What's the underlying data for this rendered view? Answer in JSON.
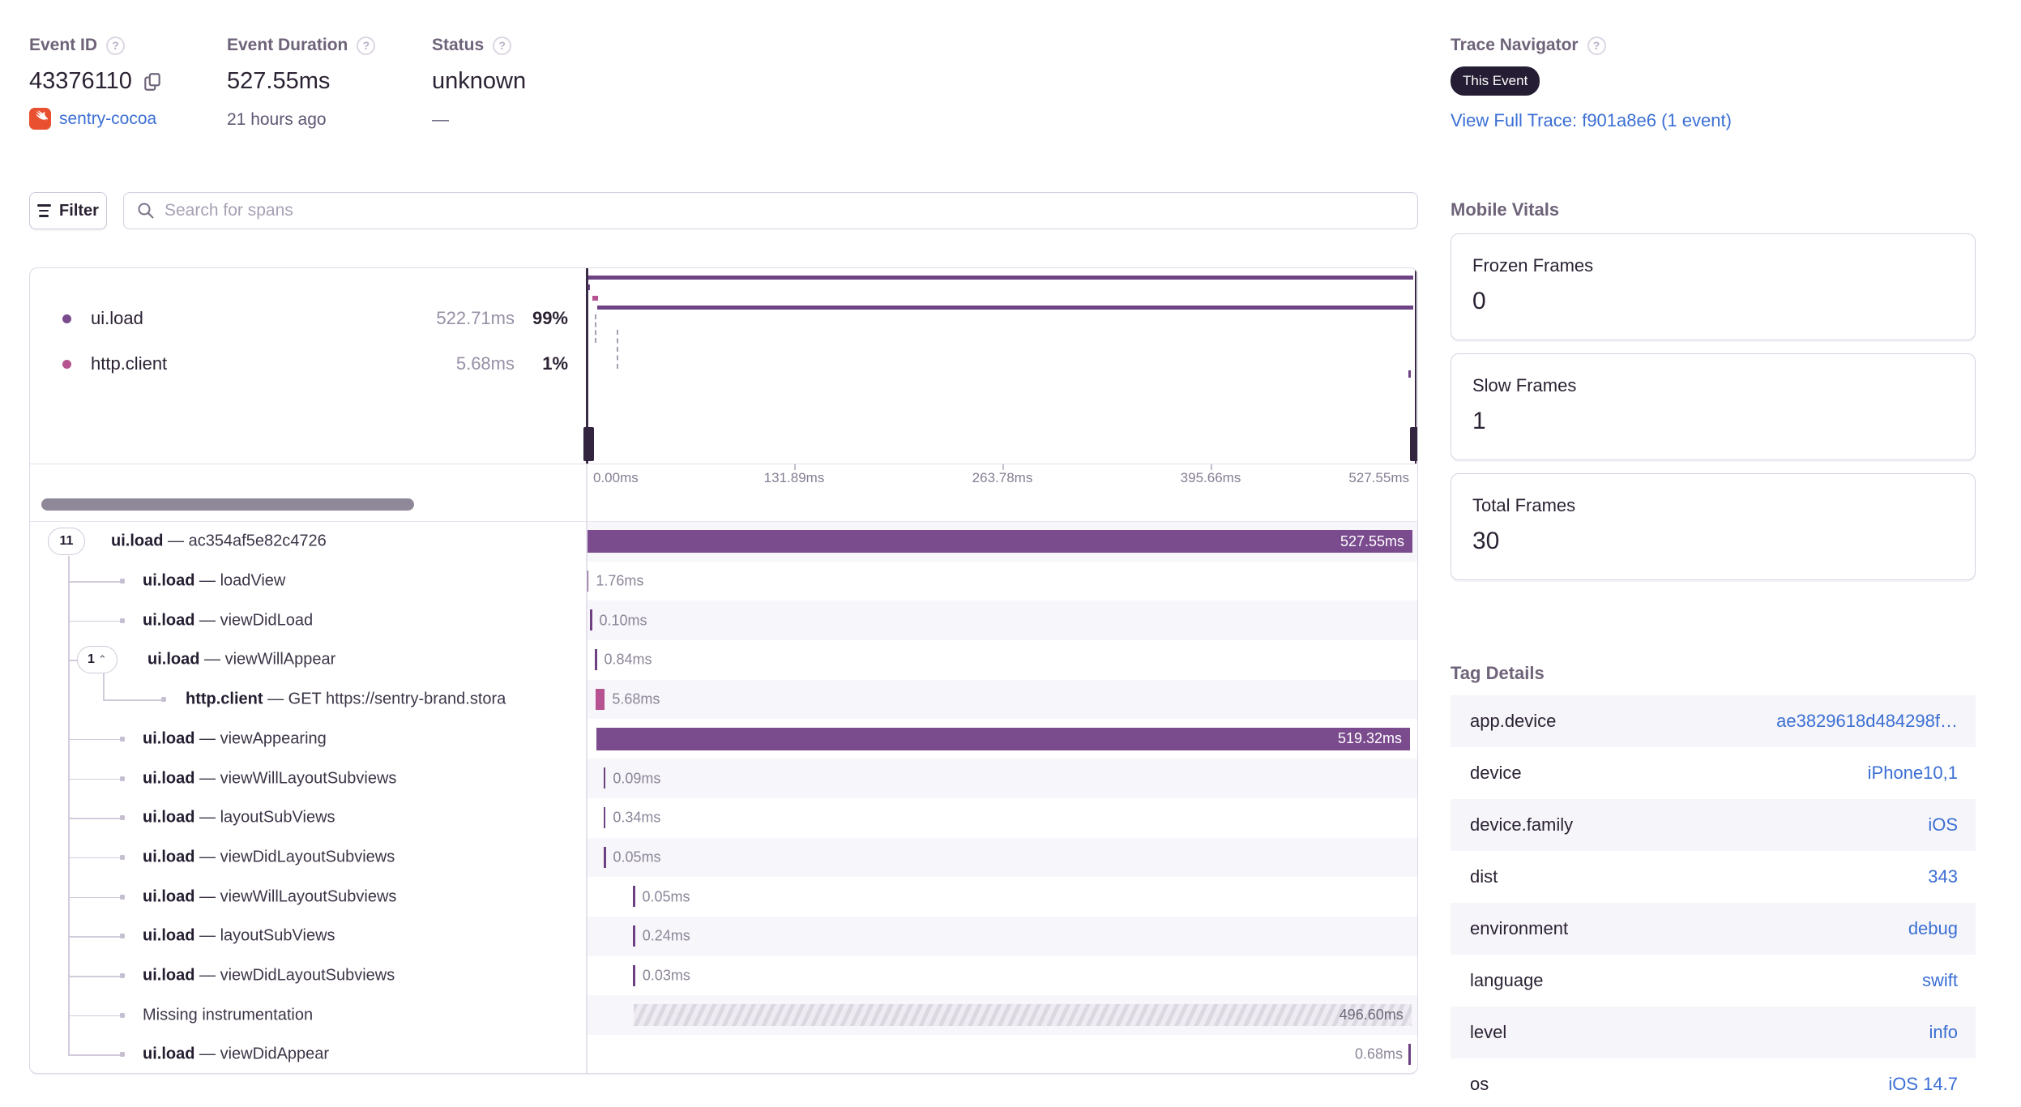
{
  "header": {
    "event_id": {
      "label": "Event ID",
      "value": "43376110",
      "project": "sentry-cocoa"
    },
    "event_duration": {
      "label": "Event Duration",
      "value": "527.55ms",
      "ago": "21 hours ago"
    },
    "status": {
      "label": "Status",
      "value": "unknown",
      "sub": "—"
    },
    "trace_navigator": {
      "label": "Trace Navigator",
      "badge": "This Event",
      "link": "View Full Trace: f901a8e6 (1 event)"
    }
  },
  "toolbar": {
    "filter_label": "Filter",
    "search_placeholder": "Search for spans"
  },
  "trace": {
    "timeline_total_ms": 527.55,
    "legend": [
      {
        "op": "ui.load",
        "duration": "522.71ms",
        "pct": "99%",
        "color": "#7a4b8d"
      },
      {
        "op": "http.client",
        "duration": "5.68ms",
        "pct": "1%",
        "color": "#b65390"
      }
    ],
    "axis_ticks": [
      "0.00ms",
      "131.89ms",
      "263.78ms",
      "395.66ms",
      "527.55ms"
    ],
    "spans": [
      {
        "badge": "11",
        "op": "ui.load",
        "desc": "ac354af5e82c4726",
        "depth": 0,
        "kind": "bar",
        "start_ms": 0,
        "dur_ms": 527.55,
        "dur_label": "527.55ms",
        "color": "#7a4b8d"
      },
      {
        "op": "ui.load",
        "desc": "loadView",
        "depth": 1,
        "kind": "tick",
        "start_ms": 0,
        "dur_ms": 1.76,
        "dur_label": "1.76ms"
      },
      {
        "op": "ui.load",
        "desc": "viewDidLoad",
        "depth": 1,
        "kind": "tick",
        "start_ms": 2.6,
        "dur_ms": 0.1,
        "dur_label": "0.10ms"
      },
      {
        "badge": "1",
        "badge_chevron": "up",
        "op": "ui.load",
        "desc": "viewWillAppear",
        "depth": 1,
        "kind": "tick",
        "start_ms": 5.7,
        "dur_ms": 0.84,
        "dur_label": "0.84ms"
      },
      {
        "op": "http.client",
        "desc": "GET https://sentry-brand.stora",
        "depth": 2,
        "kind": "tick",
        "start_ms": 6.4,
        "dur_ms": 5.68,
        "dur_label": "5.68ms",
        "color": "#b65390"
      },
      {
        "op": "ui.load",
        "desc": "viewAppearing",
        "depth": 1,
        "kind": "bar",
        "start_ms": 6.7,
        "dur_ms": 519.32,
        "dur_label": "519.32ms",
        "color": "#7a4b8d"
      },
      {
        "op": "ui.load",
        "desc": "viewWillLayoutSubviews",
        "depth": 1,
        "kind": "tick",
        "start_ms": 11.3,
        "dur_ms": 0.09,
        "dur_label": "0.09ms"
      },
      {
        "op": "ui.load",
        "desc": "layoutSubViews",
        "depth": 1,
        "kind": "tick",
        "start_ms": 11.3,
        "dur_ms": 0.34,
        "dur_label": "0.34ms"
      },
      {
        "op": "ui.load",
        "desc": "viewDidLayoutSubviews",
        "depth": 1,
        "kind": "tick",
        "start_ms": 11.4,
        "dur_ms": 0.05,
        "dur_label": "0.05ms"
      },
      {
        "op": "ui.load",
        "desc": "viewWillLayoutSubviews",
        "depth": 1,
        "kind": "tick",
        "start_ms": 30.0,
        "dur_ms": 0.05,
        "dur_label": "0.05ms"
      },
      {
        "op": "ui.load",
        "desc": "layoutSubViews",
        "depth": 1,
        "kind": "tick",
        "start_ms": 30.1,
        "dur_ms": 0.24,
        "dur_label": "0.24ms"
      },
      {
        "op": "ui.load",
        "desc": "viewDidLayoutSubviews",
        "depth": 1,
        "kind": "tick",
        "start_ms": 30.2,
        "dur_ms": 0.03,
        "dur_label": "0.03ms"
      },
      {
        "op": null,
        "desc": "Missing instrumentation",
        "depth": 1,
        "kind": "hatched",
        "start_ms": 30.3,
        "dur_ms": 496.6,
        "dur_label": "496.60ms"
      },
      {
        "op": "ui.load",
        "desc": "viewDidAppear",
        "depth": 1,
        "kind": "tick-end",
        "start_ms": 526.8,
        "dur_ms": 0.68,
        "dur_label": "0.68ms"
      }
    ]
  },
  "vitals": {
    "title": "Mobile Vitals",
    "cards": [
      {
        "label": "Frozen Frames",
        "value": "0"
      },
      {
        "label": "Slow Frames",
        "value": "1"
      },
      {
        "label": "Total Frames",
        "value": "30"
      }
    ]
  },
  "tags": {
    "title": "Tag Details",
    "rows": [
      {
        "key": "app.device",
        "value": "ae3829618d484298f…"
      },
      {
        "key": "device",
        "value": "iPhone10,1"
      },
      {
        "key": "device.family",
        "value": "iOS"
      },
      {
        "key": "dist",
        "value": "343"
      },
      {
        "key": "environment",
        "value": "debug"
      },
      {
        "key": "language",
        "value": "swift"
      },
      {
        "key": "level",
        "value": "info"
      },
      {
        "key": "os",
        "value": "iOS 14.7"
      }
    ]
  },
  "colors": {
    "accent_purple": "#7a4b8d",
    "accent_pink": "#b65390",
    "link_blue": "#3b6fd4",
    "badge_bg": "#241d33"
  }
}
